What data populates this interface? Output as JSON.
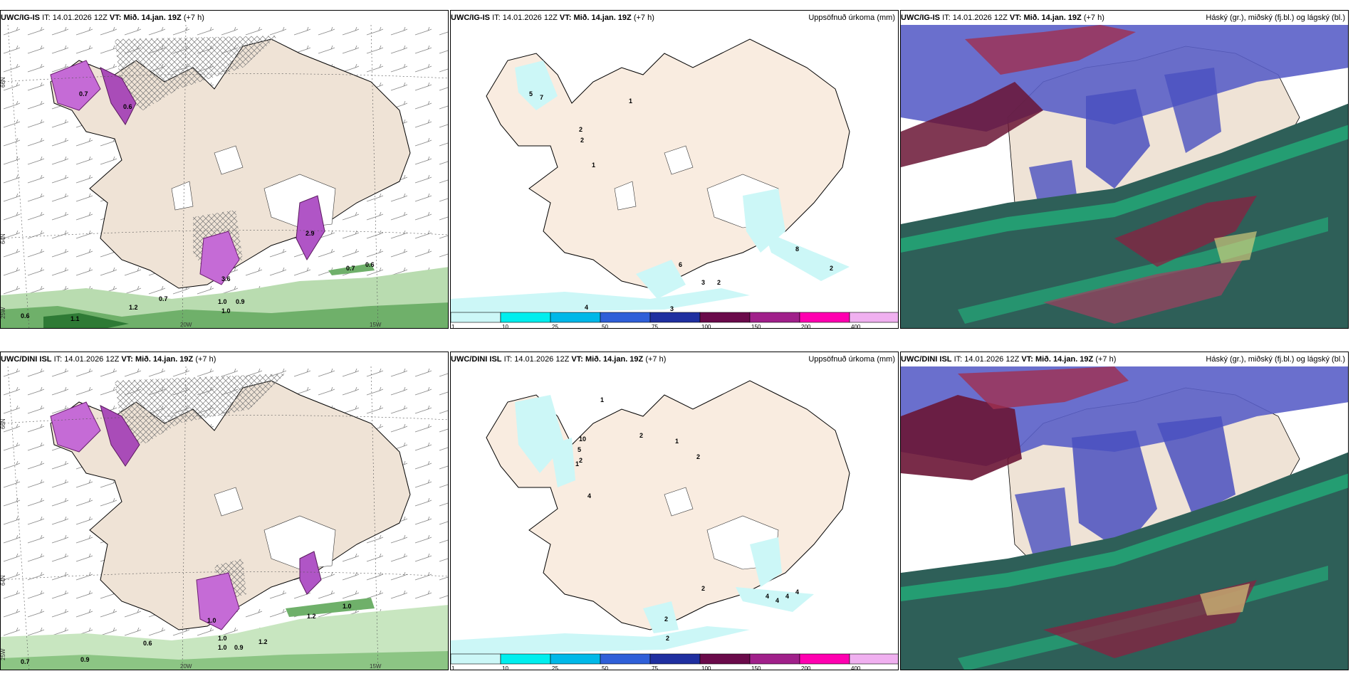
{
  "panels": [
    {
      "source": "UWC/IG-IS",
      "it_label": "IT:",
      "it": "14.01.2026 12Z",
      "vt_label": "VT:",
      "vt": "Mið. 14.jan. 19Z",
      "offset": "(+7 h)",
      "right_title": ""
    },
    {
      "source": "UWC/IG-IS",
      "it_label": "IT:",
      "it": "14.01.2026 12Z",
      "vt_label": "VT:",
      "vt": "Mið. 14.jan. 19Z",
      "offset": "(+7 h)",
      "right_title": "Uppsöfnuð úrkoma (mm)"
    },
    {
      "source": "UWC/IG-IS",
      "it_label": "IT:",
      "it": "14.01.2026 12Z",
      "vt_label": "VT:",
      "vt": "Mið. 14.jan. 19Z",
      "offset": "(+7 h)",
      "right_title": "Háský (gr.), miðský (fj.bl.) og lágský (bl.)"
    },
    {
      "source": "UWC/DINI ISL",
      "it_label": "IT:",
      "it": "14.01.2026 12Z",
      "vt_label": "VT:",
      "vt": "Mið. 14.jan. 19Z",
      "offset": "(+7 h)",
      "right_title": ""
    },
    {
      "source": "UWC/DINI ISL",
      "it_label": "IT:",
      "it": "14.01.2026 12Z",
      "vt_label": "VT:",
      "vt": "Mið. 14.jan. 19Z",
      "offset": "(+7 h)",
      "right_title": "Uppsöfnuð úrkoma (mm)"
    },
    {
      "source": "UWC/DINI ISL",
      "it_label": "IT:",
      "it": "14.01.2026 12Z",
      "vt_label": "VT:",
      "vt": "Mið. 14.jan. 19Z",
      "offset": "(+7 h)",
      "right_title": "Háský (gr.), miðský (fj.bl.) og lágský (bl.)"
    }
  ],
  "axes": {
    "lat_66": "66N",
    "lat_64": "64N",
    "lat_63": "63N",
    "lon_20": "20W",
    "lon_15": "15W",
    "lon_25": "25W"
  },
  "colorbar": {
    "ticks": [
      "1",
      "10",
      "25",
      "50",
      "75",
      "100",
      "150",
      "200",
      "400"
    ],
    "colors": [
      "#ccf7f7",
      "#00eeee",
      "#00b8e8",
      "#2f5fd8",
      "#1f2fa0",
      "#6a0a4a",
      "#a0208a",
      "#ff00b0",
      "#f0b0f0"
    ]
  },
  "map_colors": {
    "land": "#efe3d6",
    "precip_land": "#f9ece0",
    "cloud_bg": "#2e5f58"
  },
  "wind_labels_top": [
    "0.7",
    "0.6",
    "0.7",
    "1.1",
    "1.2",
    "0.6",
    "1.0",
    "3.6",
    "2.9",
    "1.0",
    "0.9",
    "0.7",
    "0.6"
  ],
  "wind_labels_bottom": [
    "1.0",
    "1.2",
    "0.6",
    "0.9",
    "0.7",
    "1.0",
    "0.9",
    "1.0",
    "1.0",
    "1.2"
  ],
  "precip_labels_top": [
    "1",
    "2",
    "2",
    "1",
    "6",
    "7",
    "5",
    "8",
    "2",
    "3",
    "2",
    "4",
    "3"
  ],
  "precip_labels_bottom": [
    "1",
    "2",
    "1",
    "2",
    "2",
    "1",
    "10",
    "5",
    "4",
    "2",
    "2",
    "4",
    "4",
    "4",
    "4",
    "2"
  ]
}
